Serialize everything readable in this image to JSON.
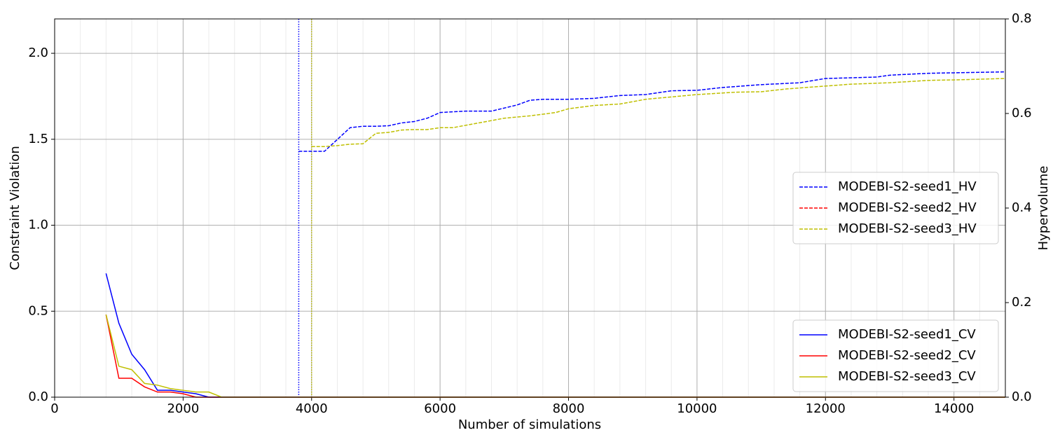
{
  "chart_data": {
    "type": "line",
    "xlabel": "Number of simulations",
    "ylabel": "Constraint Violation",
    "y2label": "Hypervolume",
    "xlim": [
      0,
      14800
    ],
    "xticks": [
      0,
      2000,
      4000,
      6000,
      8000,
      10000,
      12000,
      14000
    ],
    "ylim": [
      0,
      2.2
    ],
    "yticks": [
      {
        "value": 0,
        "label": "0.0"
      },
      {
        "value": 0.5,
        "label": "0.5"
      },
      {
        "value": 1,
        "label": "1.0"
      },
      {
        "value": 1.5,
        "label": "1.5"
      },
      {
        "value": 2,
        "label": "2.0"
      }
    ],
    "y2lim": [
      0,
      0.8
    ],
    "y2ticks": [
      {
        "value": 0,
        "label": "0.0"
      },
      {
        "value": 0.2,
        "label": "0.2"
      },
      {
        "value": 0.4,
        "label": "0.4"
      },
      {
        "value": 0.6,
        "label": "0.6"
      },
      {
        "value": 0.8,
        "label": "0.8"
      }
    ],
    "grid": true,
    "x_minor_grid": true,
    "legend_loc": {
      "y2": "center right",
      "y": "lower right"
    },
    "vlines": [
      {
        "x": 3800,
        "color": "#0000ff"
      },
      {
        "x": 4000,
        "color": "#bfbf00"
      }
    ],
    "series": [
      {
        "name": "MODEBI-S2-seed1_HV",
        "color": "#0000ff",
        "axis": "y2",
        "style": "dashed",
        "x": [
          3800,
          4000,
          4200,
          4400,
          4600,
          4800,
          5000,
          5200,
          5400,
          5600,
          5800,
          6000,
          6400,
          6800,
          7200,
          7400,
          7600,
          8000,
          8400,
          8800,
          9200,
          9600,
          10000,
          10400,
          11000,
          11600,
          12000,
          12800,
          13000,
          13600,
          14000,
          14800
        ],
        "values": [
          0.52,
          0.52,
          0.52,
          0.545,
          0.57,
          0.573,
          0.573,
          0.574,
          0.58,
          0.583,
          0.59,
          0.602,
          0.605,
          0.605,
          0.618,
          0.628,
          0.63,
          0.63,
          0.632,
          0.638,
          0.64,
          0.648,
          0.649,
          0.655,
          0.661,
          0.665,
          0.674,
          0.677,
          0.681,
          0.685,
          0.686,
          0.688
        ]
      },
      {
        "name": "MODEBI-S2-seed2_HV",
        "color": "#ff0000",
        "axis": "y2",
        "style": "dashed",
        "x": [],
        "values": []
      },
      {
        "name": "MODEBI-S2-seed3_HV",
        "color": "#bfbf00",
        "axis": "y2",
        "style": "dashed",
        "x": [
          4000,
          4200,
          4400,
          4600,
          4800,
          5000,
          5200,
          5400,
          5600,
          5800,
          6000,
          6200,
          6600,
          7000,
          7400,
          7800,
          8000,
          8400,
          8800,
          9200,
          9600,
          10000,
          10600,
          11000,
          11400,
          12000,
          12400,
          13000,
          13600,
          14000,
          14800
        ],
        "values": [
          0.53,
          0.53,
          0.532,
          0.535,
          0.536,
          0.558,
          0.56,
          0.565,
          0.566,
          0.566,
          0.57,
          0.57,
          0.58,
          0.59,
          0.595,
          0.602,
          0.61,
          0.617,
          0.62,
          0.63,
          0.635,
          0.64,
          0.645,
          0.646,
          0.652,
          0.658,
          0.662,
          0.665,
          0.67,
          0.671,
          0.674
        ]
      },
      {
        "name": "MODEBI-S2-seed1_CV",
        "color": "#0000ff",
        "axis": "y",
        "style": "solid",
        "x": [
          800,
          1000,
          1200,
          1400,
          1600,
          1800,
          2000,
          2200,
          2400,
          2600,
          14800
        ],
        "values": [
          0.72,
          0.43,
          0.25,
          0.16,
          0.04,
          0.04,
          0.03,
          0.02,
          0,
          0,
          0
        ]
      },
      {
        "name": "MODEBI-S2-seed2_CV",
        "color": "#ff0000",
        "axis": "y",
        "style": "solid",
        "x": [
          800,
          1000,
          1200,
          1400,
          1600,
          1800,
          2000,
          2200,
          2400,
          2600,
          14800
        ],
        "values": [
          0.48,
          0.11,
          0.11,
          0.06,
          0.03,
          0.03,
          0.02,
          0,
          0,
          0,
          0
        ]
      },
      {
        "name": "MODEBI-S2-seed3_CV",
        "color": "#bfbf00",
        "axis": "y",
        "style": "solid",
        "x": [
          800,
          1000,
          1200,
          1400,
          1600,
          1800,
          2000,
          2200,
          2400,
          2600,
          14800
        ],
        "values": [
          0.48,
          0.18,
          0.16,
          0.08,
          0.07,
          0.05,
          0.04,
          0.03,
          0.03,
          0,
          0
        ]
      }
    ]
  }
}
